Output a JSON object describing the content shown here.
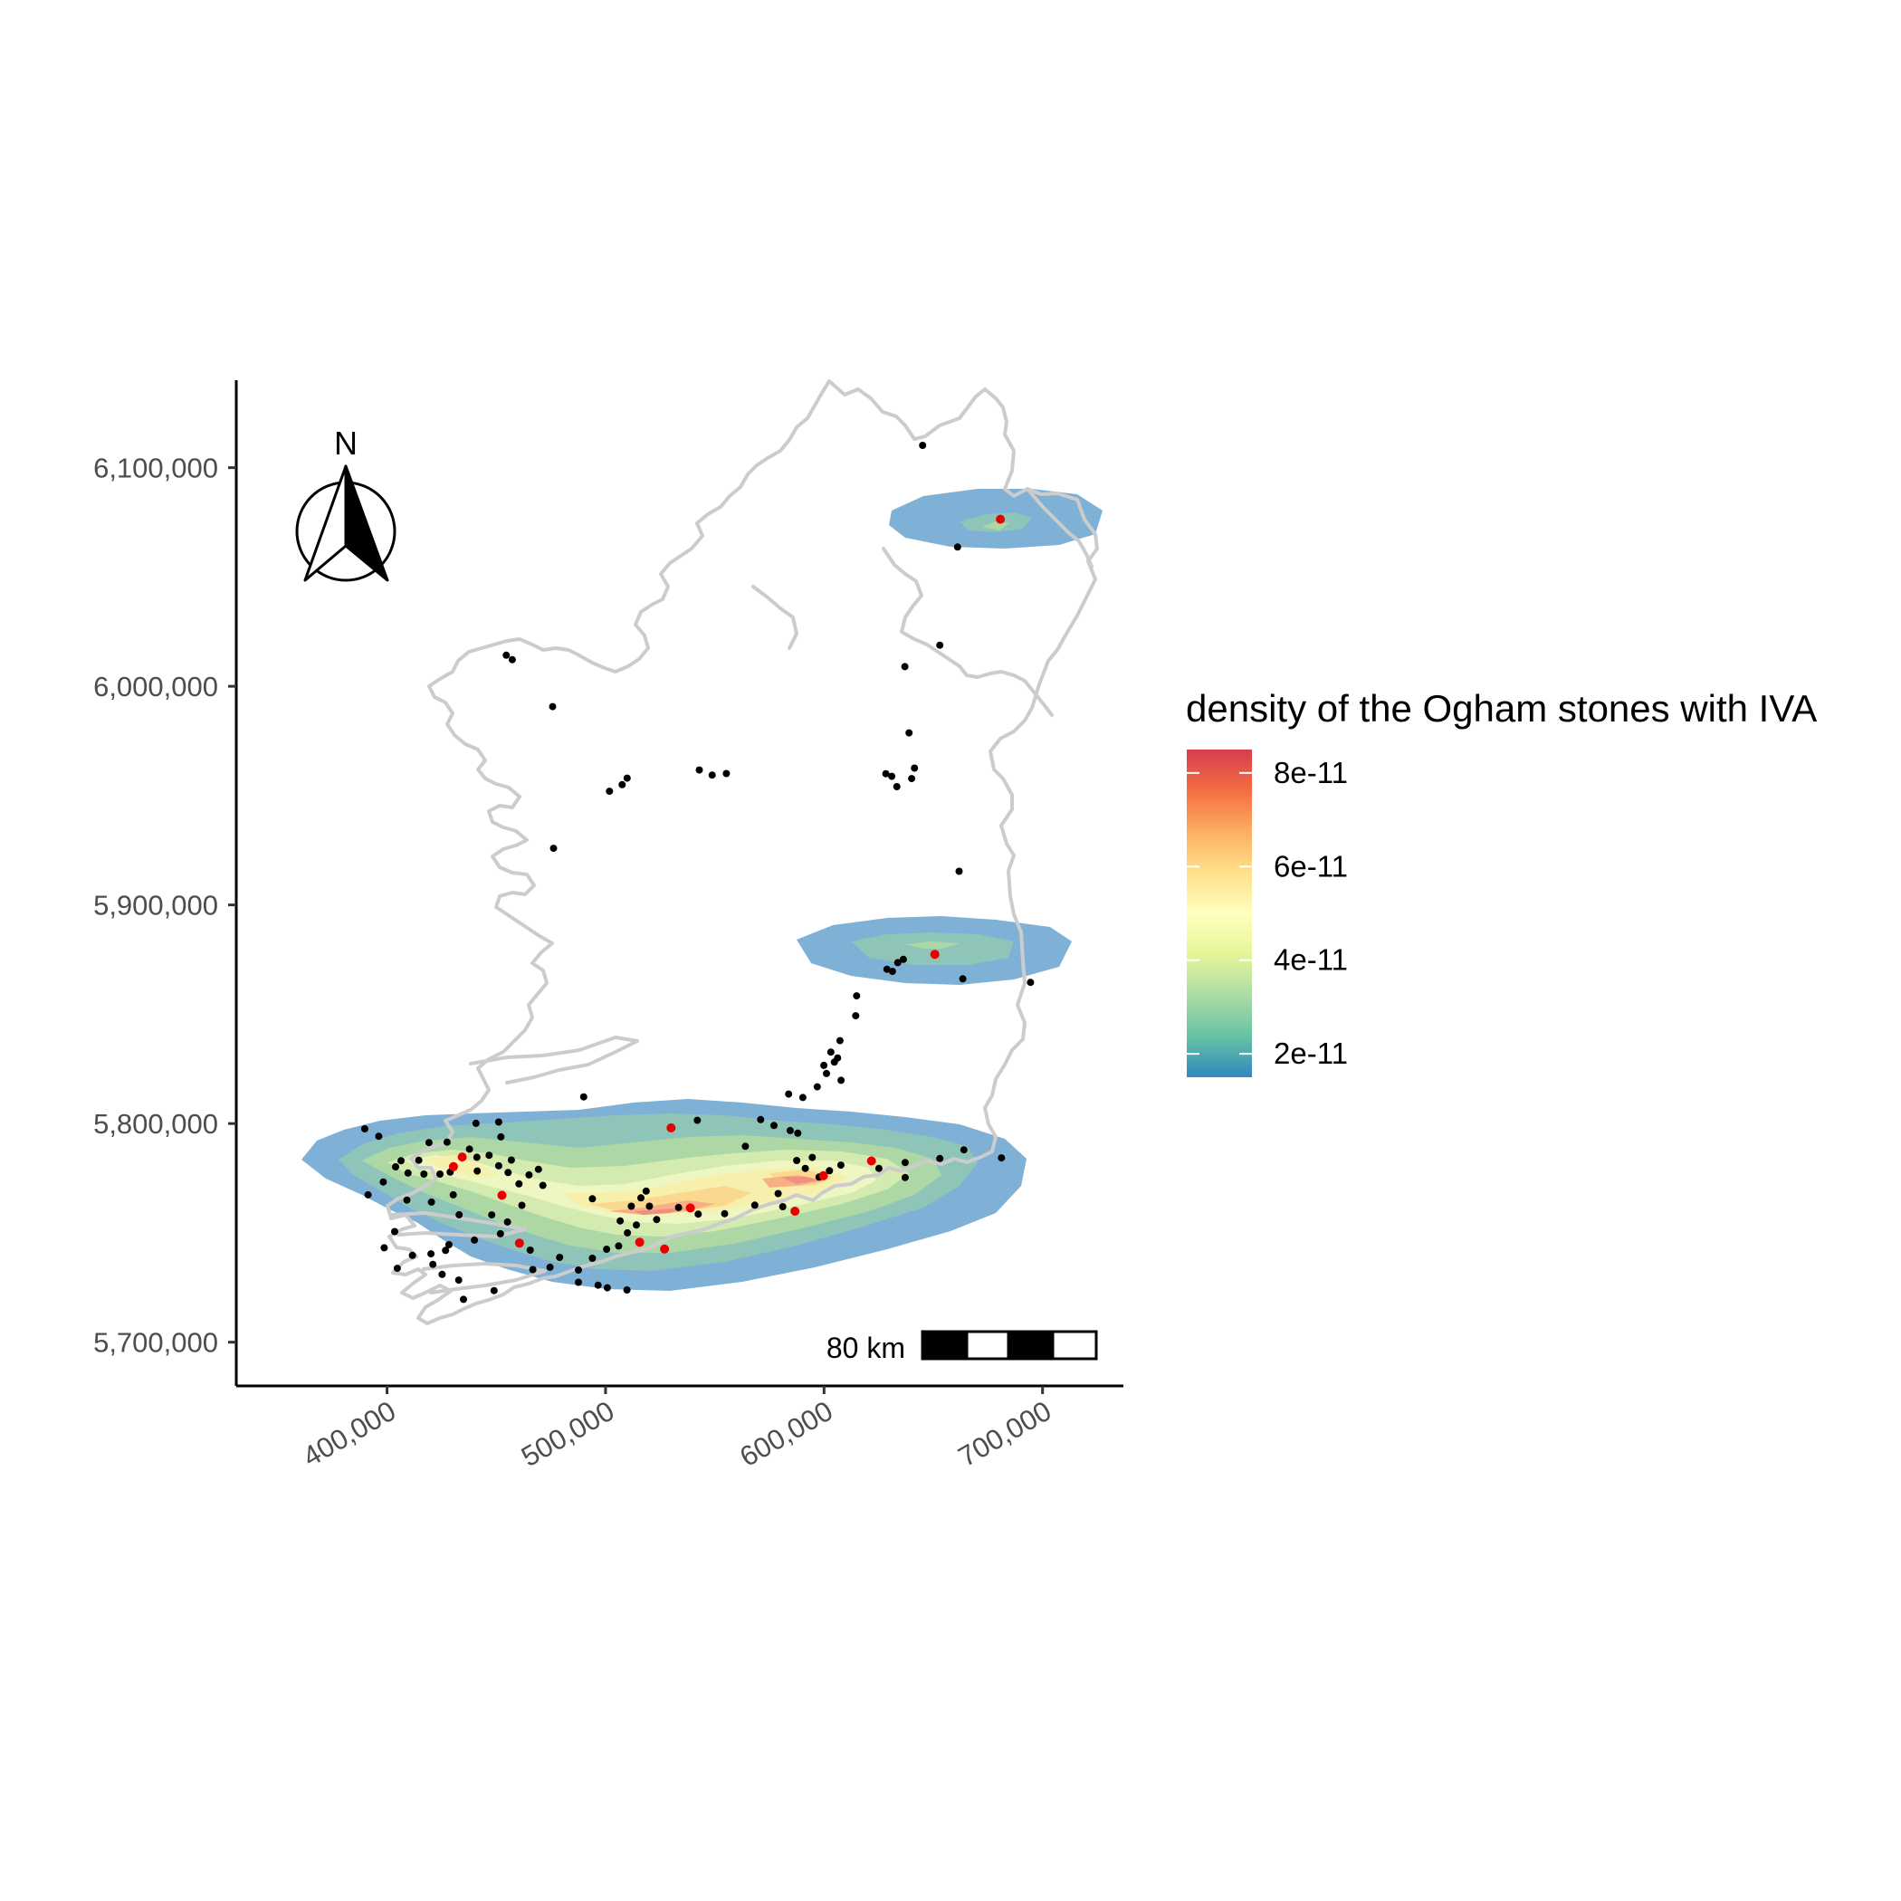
{
  "chart_data": {
    "type": "density-map",
    "region": "Ireland",
    "xlabel": "",
    "ylabel": "",
    "x_ticks": [
      {
        "value": 400000,
        "label": "400,000"
      },
      {
        "value": 500000,
        "label": "500,000"
      },
      {
        "value": 600000,
        "label": "600,000"
      },
      {
        "value": 700000,
        "label": "700,000"
      }
    ],
    "y_ticks": [
      {
        "value": 5700000,
        "label": "5,700,000"
      },
      {
        "value": 5800000,
        "label": "5,800,000"
      },
      {
        "value": 5900000,
        "label": "5,900,000"
      },
      {
        "value": 6000000,
        "label": "6,000,000"
      },
      {
        "value": 6100000,
        "label": "6,100,000"
      }
    ],
    "xlim": [
      331000,
      737000
    ],
    "ylim": [
      5680000,
      6140000
    ],
    "legend": {
      "title": "density of the Ogham stones with IVA",
      "position": "right",
      "scale": [
        1.5e-11,
        8.5e-11
      ],
      "colors": [
        "#3288bd",
        "#66c2a5",
        "#abdda4",
        "#e6f598",
        "#ffffbf",
        "#fee08b",
        "#fdae61",
        "#f46d43",
        "#d53e4f"
      ],
      "breaks": [
        {
          "value": 2e-11,
          "label": "2e-11"
        },
        {
          "value": 4e-11,
          "label": "4e-11"
        },
        {
          "value": 6e-11,
          "label": "6e-11"
        },
        {
          "value": 8e-11,
          "label": "8e-11"
        }
      ]
    },
    "density_levels": [
      "#7fb1d6",
      "#8fc4b8",
      "#add8a6",
      "#d4ebb0",
      "#eef6c2",
      "#f7f0ad",
      "#fbd88f",
      "#f7b083",
      "#f08f7f"
    ],
    "density_clusters": [
      {
        "name": "south",
        "center": [
          503000,
          5768000
        ],
        "levels": 9
      },
      {
        "name": "east",
        "center": [
          650000,
          5877000
        ],
        "levels": 3
      },
      {
        "name": "northeast",
        "center": [
          681000,
          6072000
        ],
        "levels": 3
      }
    ],
    "points_iva": [
      [
        680700,
        6076400
      ],
      [
        650700,
        5877400
      ],
      [
        530000,
        5798000
      ],
      [
        621700,
        5782900
      ],
      [
        434400,
        5784700
      ],
      [
        599700,
        5776200
      ],
      [
        430400,
        5780300
      ],
      [
        452600,
        5767200
      ],
      [
        460600,
        5745300
      ],
      [
        538800,
        5761400
      ],
      [
        586700,
        5759900
      ],
      [
        515600,
        5745700
      ],
      [
        527000,
        5742600
      ]
    ],
    "points_other": [
      [
        645100,
        6110200
      ],
      [
        661100,
        6063700
      ],
      [
        653000,
        6018800
      ],
      [
        637000,
        6009000
      ],
      [
        638900,
        5978700
      ],
      [
        628300,
        5960000
      ],
      [
        631000,
        5958800
      ],
      [
        640100,
        5957800
      ],
      [
        641400,
        5962600
      ],
      [
        633300,
        5954100
      ],
      [
        555300,
        5960100
      ],
      [
        542900,
        5961700
      ],
      [
        548800,
        5959400
      ],
      [
        509900,
        5958000
      ],
      [
        507600,
        5955000
      ],
      [
        501800,
        5952000
      ],
      [
        454600,
        6014200
      ],
      [
        457300,
        6012200
      ],
      [
        475800,
        5990700
      ],
      [
        476200,
        5925900
      ],
      [
        661800,
        5915400
      ],
      [
        663500,
        5866200
      ],
      [
        636300,
        5875100
      ],
      [
        633700,
        5873600
      ],
      [
        628800,
        5870600
      ],
      [
        631300,
        5869600
      ],
      [
        614500,
        5849300
      ],
      [
        614900,
        5858400
      ],
      [
        607300,
        5837900
      ],
      [
        603100,
        5832700
      ],
      [
        606200,
        5830000
      ],
      [
        604700,
        5828100
      ],
      [
        599900,
        5826600
      ],
      [
        601100,
        5822900
      ],
      [
        607800,
        5819800
      ],
      [
        596900,
        5816800
      ],
      [
        590300,
        5811900
      ],
      [
        583800,
        5813500
      ],
      [
        577100,
        5799100
      ],
      [
        584500,
        5796800
      ],
      [
        588000,
        5795600
      ],
      [
        571000,
        5801800
      ],
      [
        490000,
        5812200
      ],
      [
        542000,
        5801500
      ],
      [
        625100,
        5779500
      ],
      [
        637100,
        5782200
      ],
      [
        637100,
        5775300
      ],
      [
        653000,
        5784000
      ],
      [
        664000,
        5788000
      ],
      [
        607700,
        5781000
      ],
      [
        602500,
        5778400
      ],
      [
        597700,
        5775500
      ],
      [
        591400,
        5779500
      ],
      [
        587500,
        5783100
      ],
      [
        594600,
        5784500
      ],
      [
        579000,
        5768000
      ],
      [
        581100,
        5762000
      ],
      [
        568300,
        5762700
      ],
      [
        554500,
        5758800
      ],
      [
        542400,
        5758600
      ],
      [
        533400,
        5761600
      ],
      [
        518600,
        5769100
      ],
      [
        523400,
        5756100
      ],
      [
        514100,
        5753600
      ],
      [
        506700,
        5755500
      ],
      [
        510000,
        5750000
      ],
      [
        506000,
        5744000
      ],
      [
        500500,
        5742500
      ],
      [
        494000,
        5738400
      ],
      [
        487600,
        5733000
      ],
      [
        487600,
        5727400
      ],
      [
        496600,
        5726100
      ],
      [
        500800,
        5724900
      ],
      [
        509800,
        5723900
      ],
      [
        474600,
        5734300
      ],
      [
        479000,
        5738800
      ],
      [
        511800,
        5762200
      ],
      [
        516200,
        5766000
      ],
      [
        520100,
        5762200
      ],
      [
        494000,
        5765600
      ],
      [
        471300,
        5771700
      ],
      [
        460400,
        5772400
      ],
      [
        465000,
        5776500
      ],
      [
        455400,
        5777600
      ],
      [
        451100,
        5780700
      ],
      [
        441300,
        5778300
      ],
      [
        446700,
        5785500
      ],
      [
        456900,
        5783300
      ],
      [
        452100,
        5793900
      ],
      [
        451100,
        5800700
      ],
      [
        440700,
        5800100
      ],
      [
        427500,
        5791500
      ],
      [
        414500,
        5783200
      ],
      [
        416900,
        5776900
      ],
      [
        409600,
        5777400
      ],
      [
        403900,
        5780200
      ],
      [
        406400,
        5783000
      ],
      [
        398300,
        5773300
      ],
      [
        391300,
        5767400
      ],
      [
        409100,
        5765000
      ],
      [
        420300,
        5764100
      ],
      [
        430300,
        5767400
      ],
      [
        433000,
        5758300
      ],
      [
        447900,
        5758200
      ],
      [
        451900,
        5749600
      ],
      [
        440000,
        5746700
      ],
      [
        428300,
        5744600
      ],
      [
        426800,
        5742000
      ],
      [
        420100,
        5740400
      ],
      [
        421000,
        5735600
      ],
      [
        432800,
        5728400
      ],
      [
        435000,
        5719600
      ],
      [
        411600,
        5739700
      ],
      [
        403500,
        5750600
      ],
      [
        398700,
        5743200
      ],
      [
        404700,
        5733800
      ],
      [
        425200,
        5731000
      ],
      [
        465500,
        5742100
      ],
      [
        455100,
        5755000
      ],
      [
        461700,
        5762600
      ],
      [
        469300,
        5779100
      ],
      [
        441100,
        5784600
      ],
      [
        437700,
        5788300
      ],
      [
        419200,
        5791300
      ],
      [
        424200,
        5776900
      ],
      [
        428900,
        5777800
      ],
      [
        396200,
        5794200
      ],
      [
        389800,
        5797600
      ],
      [
        694500,
        5864600
      ],
      [
        681200,
        5784300
      ],
      [
        466700,
        5733200
      ],
      [
        449000,
        5723600
      ],
      [
        564000,
        5789600
      ]
    ],
    "scalebar": {
      "label": "80 km",
      "segments": 4
    },
    "north_arrow": {
      "label": "N"
    }
  },
  "colors": {
    "ireland_outline": "#cccccc",
    "point_iva": "#e60000",
    "point_other": "#000000",
    "axis": "#000000"
  }
}
